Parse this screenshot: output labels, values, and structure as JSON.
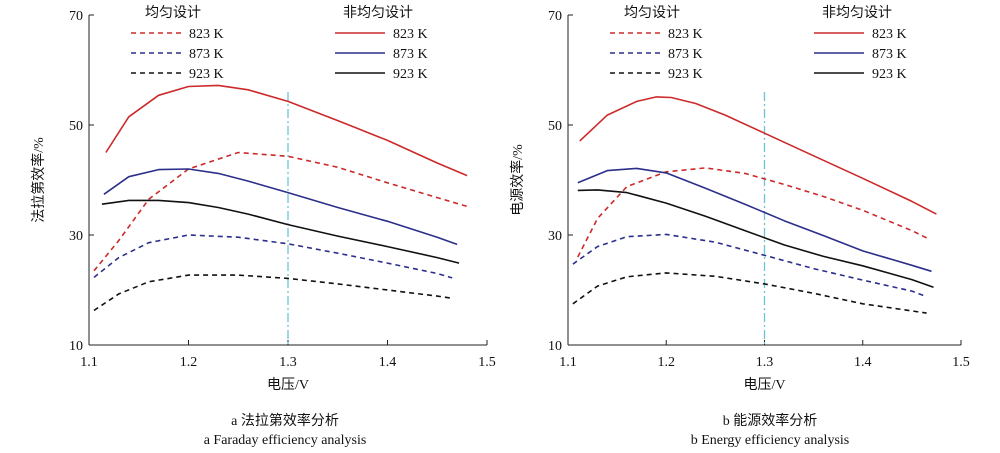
{
  "legend_headers": {
    "uniform": "均匀设计",
    "nonuniform": "非均匀设计"
  },
  "colors": {
    "823": "#cc2a2a",
    "873": "#2b2f8a",
    "923": "#111111",
    "ref_line": "#6cc4d8",
    "axis": "#222222"
  },
  "chart_data": [
    {
      "type": "line",
      "id": "a",
      "caption_cn": "a  法拉第效率分析",
      "caption_en": "a  Faraday efficiency analysis",
      "xlabel": "电压/V",
      "ylabel": "法拉第效率/%",
      "xlim": [
        1.1,
        1.5
      ],
      "ylim": [
        10,
        70
      ],
      "xticks": [
        "1.1",
        "1.2",
        "1.3",
        "1.4",
        "1.5"
      ],
      "yticks": [
        "10",
        "30",
        "50",
        "70"
      ],
      "reference_x": 1.3,
      "series": [
        {
          "name": "823 K",
          "group": "均匀设计",
          "style": "dashed",
          "color_key": "823",
          "x": [
            1.105,
            1.13,
            1.16,
            1.2,
            1.25,
            1.3,
            1.35,
            1.4,
            1.45,
            1.48
          ],
          "y": [
            23.5,
            29,
            36.5,
            42,
            45,
            44.3,
            42.3,
            39.5,
            36.8,
            35.2
          ]
        },
        {
          "name": "873 K",
          "group": "均匀设计",
          "style": "dashed",
          "color_key": "873",
          "x": [
            1.105,
            1.13,
            1.16,
            1.2,
            1.25,
            1.3,
            1.35,
            1.4,
            1.45,
            1.465
          ],
          "y": [
            22.3,
            25.9,
            28.6,
            30,
            29.6,
            28.4,
            26.7,
            24.9,
            23,
            22.2
          ]
        },
        {
          "name": "923 K",
          "group": "均匀设计",
          "style": "dashed",
          "color_key": "923",
          "x": [
            1.105,
            1.13,
            1.16,
            1.2,
            1.25,
            1.3,
            1.35,
            1.4,
            1.45,
            1.465
          ],
          "y": [
            16.3,
            19.3,
            21.5,
            22.7,
            22.7,
            22.1,
            21.1,
            20,
            18.9,
            18.5
          ]
        },
        {
          "name": "823 K",
          "group": "非均匀设计",
          "style": "solid",
          "color_key": "823",
          "x": [
            1.117,
            1.14,
            1.17,
            1.2,
            1.23,
            1.26,
            1.3,
            1.35,
            1.4,
            1.45,
            1.48
          ],
          "y": [
            45,
            51.5,
            55.4,
            57,
            57.2,
            56.4,
            54.3,
            50.8,
            47.2,
            43.1,
            40.8
          ]
        },
        {
          "name": "873 K",
          "group": "非均匀设计",
          "style": "solid",
          "color_key": "873",
          "x": [
            1.115,
            1.14,
            1.17,
            1.2,
            1.23,
            1.26,
            1.3,
            1.35,
            1.4,
            1.45,
            1.47
          ],
          "y": [
            37.4,
            40.6,
            41.9,
            42,
            41.2,
            39.8,
            37.7,
            35,
            32.5,
            29.6,
            28.3
          ]
        },
        {
          "name": "923 K",
          "group": "非均匀设计",
          "style": "solid",
          "color_key": "923",
          "x": [
            1.113,
            1.14,
            1.17,
            1.2,
            1.23,
            1.26,
            1.3,
            1.35,
            1.4,
            1.45,
            1.472
          ],
          "y": [
            35.6,
            36.3,
            36.3,
            35.9,
            35,
            33.8,
            31.9,
            29.8,
            27.9,
            25.9,
            24.9
          ]
        }
      ]
    },
    {
      "type": "line",
      "id": "b",
      "caption_cn": "b  能源效率分析",
      "caption_en": "b  Energy efficiency analysis",
      "xlabel": "电压/V",
      "ylabel": "电源效率/%",
      "xlim": [
        1.1,
        1.5
      ],
      "ylim": [
        10,
        70
      ],
      "xticks": [
        "1.1",
        "1.2",
        "1.3",
        "1.4",
        "1.5"
      ],
      "yticks": [
        "10",
        "30",
        "50",
        "70"
      ],
      "reference_x": 1.3,
      "series": [
        {
          "name": "823 K",
          "group": "均匀设计",
          "style": "dashed",
          "color_key": "823",
          "x": [
            1.11,
            1.13,
            1.16,
            1.2,
            1.24,
            1.28,
            1.32,
            1.36,
            1.4,
            1.45,
            1.468
          ],
          "y": [
            26,
            33,
            38.8,
            41.5,
            42.2,
            41.2,
            39.2,
            37,
            34.5,
            30.8,
            29.2
          ]
        },
        {
          "name": "873 K",
          "group": "均匀设计",
          "style": "dashed",
          "color_key": "873",
          "x": [
            1.105,
            1.13,
            1.16,
            1.2,
            1.25,
            1.3,
            1.35,
            1.4,
            1.45,
            1.465
          ],
          "y": [
            24.7,
            27.9,
            29.7,
            30.1,
            28.7,
            26.3,
            23.9,
            21.8,
            19.8,
            18.8
          ]
        },
        {
          "name": "923 K",
          "group": "均匀设计",
          "style": "dashed",
          "color_key": "923",
          "x": [
            1.105,
            1.13,
            1.16,
            1.2,
            1.25,
            1.3,
            1.35,
            1.4,
            1.45,
            1.465
          ],
          "y": [
            17.5,
            20.7,
            22.4,
            23.1,
            22.5,
            21.1,
            19.4,
            17.5,
            16.2,
            15.8
          ]
        },
        {
          "name": "823 K",
          "group": "非均匀设计",
          "style": "solid",
          "color_key": "823",
          "x": [
            1.112,
            1.14,
            1.17,
            1.19,
            1.205,
            1.23,
            1.26,
            1.3,
            1.35,
            1.4,
            1.45,
            1.475
          ],
          "y": [
            47.1,
            51.8,
            54.3,
            55.1,
            55,
            53.9,
            51.8,
            48.5,
            44.4,
            40.3,
            36.1,
            33.8
          ]
        },
        {
          "name": "873 K",
          "group": "非均匀设计",
          "style": "solid",
          "color_key": "873",
          "x": [
            1.11,
            1.14,
            1.17,
            1.2,
            1.24,
            1.28,
            1.32,
            1.36,
            1.4,
            1.45,
            1.47
          ],
          "y": [
            39.5,
            41.7,
            42.1,
            41.3,
            38.5,
            35.6,
            32.6,
            29.9,
            27.1,
            24.5,
            23.4
          ]
        },
        {
          "name": "923 K",
          "group": "非均匀设计",
          "style": "solid",
          "color_key": "923",
          "x": [
            1.11,
            1.13,
            1.16,
            1.2,
            1.24,
            1.28,
            1.32,
            1.36,
            1.4,
            1.45,
            1.472
          ],
          "y": [
            38.1,
            38.2,
            37.7,
            35.8,
            33.4,
            30.8,
            28.2,
            26.1,
            24.4,
            21.9,
            20.5
          ]
        }
      ]
    }
  ]
}
